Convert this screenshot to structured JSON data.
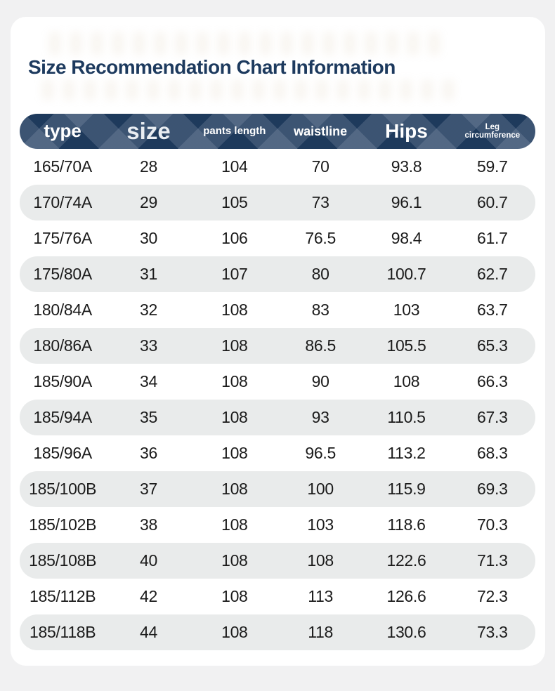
{
  "title": "Size Recommendation Chart Information",
  "colors": {
    "page_background": "#f1f1f2",
    "card_background": "#ffffff",
    "header_background": "#1e3a5c",
    "header_text": "#ffffff",
    "alt_row_background": "#e9ebeb",
    "title_text": "#1d3a5e",
    "cell_text": "#1b1b1b"
  },
  "table": {
    "columns": [
      {
        "label": "type"
      },
      {
        "label": "size"
      },
      {
        "label": "pants length"
      },
      {
        "label": "waistline"
      },
      {
        "label": "Hips"
      },
      {
        "label": "Leg circumference"
      }
    ],
    "rows": [
      [
        "165/70A",
        "28",
        "104",
        "70",
        "93.8",
        "59.7"
      ],
      [
        "170/74A",
        "29",
        "105",
        "73",
        "96.1",
        "60.7"
      ],
      [
        "175/76A",
        "30",
        "106",
        "76.5",
        "98.4",
        "61.7"
      ],
      [
        "175/80A",
        "31",
        "107",
        "80",
        "100.7",
        "62.7"
      ],
      [
        "180/84A",
        "32",
        "108",
        "83",
        "103",
        "63.7"
      ],
      [
        "180/86A",
        "33",
        "108",
        "86.5",
        "105.5",
        "65.3"
      ],
      [
        "185/90A",
        "34",
        "108",
        "90",
        "108",
        "66.3"
      ],
      [
        "185/94A",
        "35",
        "108",
        "93",
        "110.5",
        "67.3"
      ],
      [
        "185/96A",
        "36",
        "108",
        "96.5",
        "113.2",
        "68.3"
      ],
      [
        "185/100B",
        "37",
        "108",
        "100",
        "115.9",
        "69.3"
      ],
      [
        "185/102B",
        "38",
        "108",
        "103",
        "118.6",
        "70.3"
      ],
      [
        "185/108B",
        "40",
        "108",
        "108",
        "122.6",
        "71.3"
      ],
      [
        "185/112B",
        "42",
        "108",
        "113",
        "126.6",
        "72.3"
      ],
      [
        "185/118B",
        "44",
        "108",
        "118",
        "130.6",
        "73.3"
      ]
    ]
  }
}
